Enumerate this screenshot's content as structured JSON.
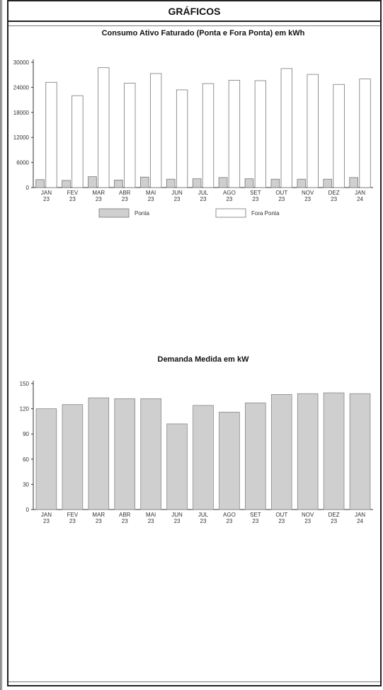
{
  "header": {
    "title": "GRÁFICOS"
  },
  "chart_data": [
    {
      "type": "bar",
      "title": "Consumo Ativo Faturado (Ponta e Fora Ponta) em kWh",
      "categories": [
        "JAN 23",
        "FEV 23",
        "MAR 23",
        "ABR 23",
        "MAI 23",
        "JUN 23",
        "JUL 23",
        "AGO 23",
        "SET 23",
        "OUT 23",
        "NOV 23",
        "DEZ 23",
        "JAN 24"
      ],
      "category_lines": [
        [
          "JAN",
          "23"
        ],
        [
          "FEV",
          "23"
        ],
        [
          "MAR",
          "23"
        ],
        [
          "ABR",
          "23"
        ],
        [
          "MAI",
          "23"
        ],
        [
          "JUN",
          "23"
        ],
        [
          "JUL",
          "23"
        ],
        [
          "AGO",
          "23"
        ],
        [
          "SET",
          "23"
        ],
        [
          "OUT",
          "23"
        ],
        [
          "NOV",
          "23"
        ],
        [
          "DEZ",
          "23"
        ],
        [
          "JAN",
          "24"
        ]
      ],
      "yticks": [
        "0",
        "6000",
        "12000",
        "18000",
        "24000",
        "30000"
      ],
      "ylim": [
        0,
        30000
      ],
      "series": [
        {
          "name": "Ponta",
          "color": "#cfcfcf",
          "values": [
            1900,
            1700,
            2600,
            1800,
            2500,
            2000,
            2100,
            2400,
            2100,
            2000,
            2000,
            2000,
            2400
          ]
        },
        {
          "name": "Fora Ponta",
          "color": "#ffffff",
          "values": [
            25200,
            22000,
            28700,
            25000,
            27300,
            23400,
            24900,
            25700,
            25600,
            28500,
            27100,
            24700,
            26000
          ]
        }
      ],
      "legend": "bottom",
      "grid": false
    },
    {
      "type": "bar",
      "title": "Demanda Medida em kW",
      "categories": [
        "JAN 23",
        "FEV 23",
        "MAR 23",
        "ABR 23",
        "MAI 23",
        "JUN 23",
        "JUL 23",
        "AGO 23",
        "SET 23",
        "OUT 23",
        "NOV 23",
        "DEZ 23",
        "JAN 24"
      ],
      "category_lines": [
        [
          "JAN",
          "23"
        ],
        [
          "FEV",
          "23"
        ],
        [
          "MAR",
          "23"
        ],
        [
          "ABR",
          "23"
        ],
        [
          "MAI",
          "23"
        ],
        [
          "JUN",
          "23"
        ],
        [
          "JUL",
          "23"
        ],
        [
          "AGO",
          "23"
        ],
        [
          "SET",
          "23"
        ],
        [
          "OUT",
          "23"
        ],
        [
          "NOV",
          "23"
        ],
        [
          "DEZ",
          "23"
        ],
        [
          "JAN",
          "24"
        ]
      ],
      "yticks": [
        "0",
        "30",
        "60",
        "90",
        "120",
        "150"
      ],
      "ylim": [
        0,
        150
      ],
      "series": [
        {
          "color": "#cfcfcf",
          "values": [
            120,
            125,
            133,
            132,
            132,
            102,
            124,
            116,
            127,
            137,
            138,
            139,
            138
          ]
        }
      ],
      "grid": false
    }
  ]
}
